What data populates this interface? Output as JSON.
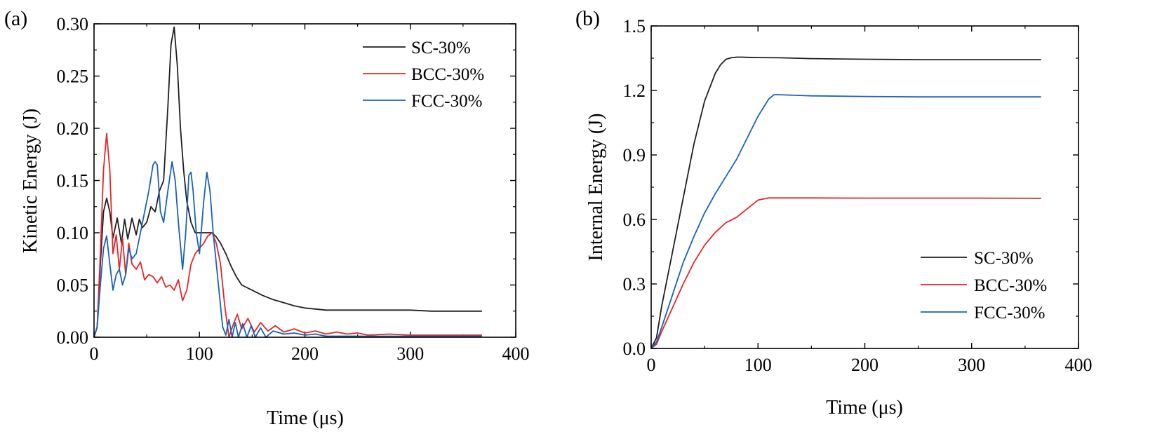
{
  "chart_data": [
    {
      "panel_label": "(a)",
      "type": "line",
      "xlabel": "Time (μs)",
      "ylabel": "Kinetic Energy (J)",
      "xlim": [
        0,
        400
      ],
      "ylim": [
        0,
        0.3
      ],
      "xticks": [
        "0",
        "100",
        "200",
        "300",
        "400"
      ],
      "yticks": [
        "0.00",
        "0.05",
        "0.10",
        "0.15",
        "0.20",
        "0.25",
        "0.30"
      ],
      "legend_position": "top-right",
      "series": [
        {
          "name": "SC-30%",
          "color": "#231f20",
          "x": [
            0,
            3,
            6,
            9,
            12,
            15,
            18,
            22,
            26,
            29,
            32,
            36,
            40,
            43,
            46,
            50,
            54,
            58,
            62,
            66,
            70,
            73,
            76,
            79,
            82,
            85,
            88,
            92,
            96,
            100,
            104,
            108,
            112,
            116,
            120,
            125,
            130,
            135,
            140,
            150,
            160,
            170,
            180,
            190,
            200,
            210,
            220,
            240,
            260,
            280,
            300,
            320,
            340,
            368
          ],
          "y": [
            0,
            0.01,
            0.07,
            0.12,
            0.133,
            0.12,
            0.095,
            0.114,
            0.09,
            0.113,
            0.094,
            0.114,
            0.098,
            0.113,
            0.105,
            0.11,
            0.125,
            0.12,
            0.14,
            0.15,
            0.22,
            0.28,
            0.297,
            0.26,
            0.2,
            0.16,
            0.13,
            0.11,
            0.1,
            0.1,
            0.1,
            0.1,
            0.1,
            0.096,
            0.09,
            0.08,
            0.068,
            0.058,
            0.05,
            0.045,
            0.04,
            0.036,
            0.033,
            0.03,
            0.028,
            0.027,
            0.026,
            0.026,
            0.026,
            0.026,
            0.026,
            0.025,
            0.025,
            0.025
          ]
        },
        {
          "name": "BCC-30%",
          "color": "#e3262a",
          "x": [
            0,
            3,
            6,
            9,
            12,
            15,
            18,
            21,
            24,
            27,
            30,
            33,
            36,
            40,
            44,
            48,
            52,
            56,
            60,
            64,
            68,
            72,
            76,
            80,
            84,
            88,
            92,
            96,
            100,
            104,
            108,
            112,
            116,
            120,
            124,
            128,
            132,
            136,
            140,
            146,
            152,
            158,
            165,
            172,
            180,
            190,
            200,
            210,
            220,
            230,
            240,
            250,
            260,
            280,
            300,
            320,
            340,
            368
          ],
          "y": [
            0,
            0.01,
            0.08,
            0.16,
            0.195,
            0.16,
            0.08,
            0.098,
            0.065,
            0.095,
            0.06,
            0.09,
            0.07,
            0.065,
            0.072,
            0.055,
            0.06,
            0.058,
            0.052,
            0.058,
            0.048,
            0.05,
            0.045,
            0.055,
            0.035,
            0.045,
            0.07,
            0.08,
            0.085,
            0.09,
            0.097,
            0.1,
            0.09,
            0.07,
            0.03,
            0.0,
            0.012,
            0.022,
            0.008,
            0.018,
            0.005,
            0.014,
            0.006,
            0.011,
            0.005,
            0.008,
            0.004,
            0.006,
            0.003,
            0.005,
            0.003,
            0.004,
            0.002,
            0.003,
            0.002,
            0.002,
            0.002,
            0.002
          ]
        },
        {
          "name": "FCC-30%",
          "color": "#1a62b5",
          "x": [
            0,
            3,
            6,
            9,
            12,
            15,
            18,
            21,
            24,
            27,
            30,
            33,
            36,
            40,
            44,
            48,
            52,
            56,
            58,
            60,
            63,
            66,
            70,
            74,
            77,
            80,
            84,
            87,
            90,
            92,
            94,
            97,
            100,
            104,
            107,
            110,
            113,
            116,
            119,
            122,
            125,
            128,
            131,
            134,
            137,
            141,
            145,
            149,
            153,
            158,
            163,
            170,
            180,
            190,
            200,
            210,
            220,
            240,
            260,
            280,
            300,
            340,
            368
          ],
          "y": [
            0,
            0.01,
            0.05,
            0.085,
            0.097,
            0.07,
            0.045,
            0.06,
            0.065,
            0.05,
            0.06,
            0.085,
            0.075,
            0.08,
            0.1,
            0.12,
            0.14,
            0.165,
            0.168,
            0.165,
            0.12,
            0.11,
            0.14,
            0.168,
            0.15,
            0.11,
            0.065,
            0.1,
            0.155,
            0.158,
            0.14,
            0.1,
            0.08,
            0.13,
            0.158,
            0.14,
            0.1,
            0.07,
            0.04,
            0.01,
            0.002,
            0.017,
            0.0,
            0.014,
            0.0,
            0.013,
            0.0,
            0.011,
            0.0,
            0.009,
            0.0,
            0.006,
            0.003,
            0.004,
            0.002,
            0.003,
            0.001,
            0.001,
            0.001,
            0.001,
            0.001,
            0.001,
            0.001
          ]
        }
      ]
    },
    {
      "panel_label": "(b)",
      "type": "line",
      "xlabel": "Time (μs)",
      "ylabel": "Internal Energy (J)",
      "xlim": [
        0,
        400
      ],
      "ylim": [
        0,
        1.5
      ],
      "xticks": [
        "0",
        "100",
        "200",
        "300",
        "400"
      ],
      "yticks": [
        "0.0",
        "0.3",
        "0.6",
        "0.9",
        "1.2",
        "1.5"
      ],
      "legend_position": "bottom-right",
      "series": [
        {
          "name": "SC-30%",
          "color": "#231f20",
          "x": [
            0,
            5,
            10,
            20,
            30,
            40,
            50,
            60,
            65,
            70,
            75,
            80,
            85,
            90,
            100,
            120,
            150,
            200,
            250,
            300,
            365
          ],
          "y": [
            0,
            0.05,
            0.2,
            0.45,
            0.7,
            0.95,
            1.15,
            1.28,
            1.32,
            1.345,
            1.352,
            1.355,
            1.355,
            1.354,
            1.353,
            1.352,
            1.348,
            1.345,
            1.343,
            1.343,
            1.343
          ]
        },
        {
          "name": "BCC-30%",
          "color": "#e3262a",
          "x": [
            0,
            5,
            10,
            20,
            30,
            40,
            50,
            60,
            70,
            80,
            90,
            100,
            110,
            120,
            150,
            200,
            250,
            300,
            365
          ],
          "y": [
            0,
            0.02,
            0.08,
            0.19,
            0.3,
            0.4,
            0.48,
            0.54,
            0.585,
            0.61,
            0.65,
            0.69,
            0.7,
            0.7,
            0.7,
            0.699,
            0.699,
            0.699,
            0.698
          ]
        },
        {
          "name": "FCC-30%",
          "color": "#1a62b5",
          "x": [
            0,
            5,
            10,
            20,
            30,
            40,
            50,
            60,
            70,
            80,
            90,
            100,
            110,
            115,
            120,
            150,
            200,
            250,
            300,
            365
          ],
          "y": [
            0,
            0.03,
            0.1,
            0.25,
            0.4,
            0.52,
            0.63,
            0.72,
            0.8,
            0.88,
            0.98,
            1.08,
            1.16,
            1.18,
            1.18,
            1.175,
            1.172,
            1.17,
            1.17,
            1.17
          ]
        }
      ]
    }
  ]
}
